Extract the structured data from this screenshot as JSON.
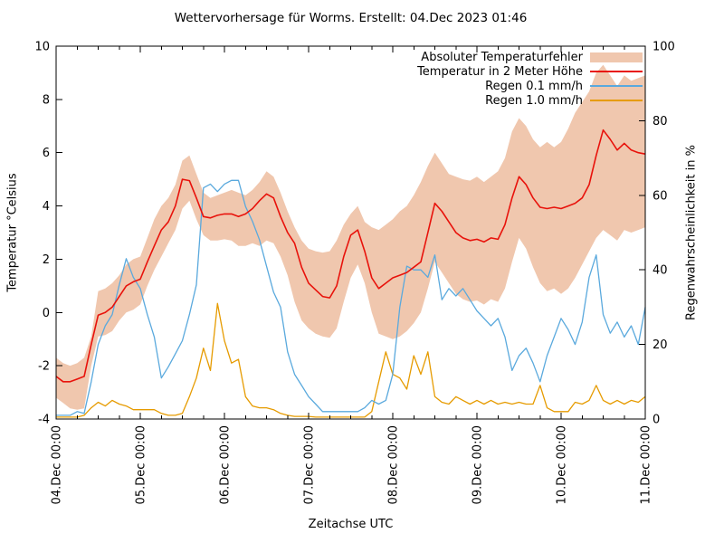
{
  "title": "Wettervorhersage für Worms. Erstellt: 04.Dec 2023 01:46",
  "axes": {
    "left_label": "Temperatur °Celsius",
    "right_label": "Regenwahrscheinlichkeit in %",
    "x_label": "Zeitachse UTC",
    "left_ticks": [
      10,
      8,
      6,
      4,
      2,
      0,
      -2,
      -4
    ],
    "right_ticks": [
      100,
      80,
      60,
      40,
      20,
      0
    ],
    "x_tick_labels": [
      "04.Dec 00:00",
      "05.Dec 00:00",
      "06.Dec 00:00",
      "07.Dec 00:00",
      "08.Dec 00:00",
      "09.Dec 00:00",
      "10.Dec 00:00",
      "11.Dec 00:00"
    ]
  },
  "legend": {
    "items": [
      {
        "label": "Absoluter Temperaturfehler",
        "sample": "band",
        "color_key": "band"
      },
      {
        "label": "Temperatur in 2 Meter Höhe",
        "sample": "line",
        "color_key": "temperature"
      },
      {
        "label": "Regen 0.1 mm/h",
        "sample": "line",
        "color_key": "rain01"
      },
      {
        "label": "Regen 1.0 mm/h",
        "sample": "line",
        "color_key": "rain10"
      }
    ]
  },
  "colors": {
    "band": "#f0c7ae",
    "temperature": "#e8120b",
    "rain01": "#5aa9dd",
    "rain10": "#e69b00",
    "axis": "#000000",
    "text": "#000000"
  },
  "chart_data": {
    "type": "line",
    "title": "Wettervorhersage für Worms. Erstellt: 04.Dec 2023 01:46",
    "x_unit": "hours since 04.Dec 2023 00:00 UTC",
    "x_range": [
      0,
      168
    ],
    "x_start_hour": 0,
    "x_step_hours": 2,
    "x_major_tick_hours": [
      0,
      24,
      48,
      72,
      96,
      120,
      144,
      168
    ],
    "x_minor_tick_step_hours": 6,
    "grid": false,
    "legend_position": "top-right-inside",
    "y_left": {
      "label": "Temperatur °Celsius",
      "range": [
        -4,
        10
      ]
    },
    "y_right": {
      "label": "Regenwahrscheinlichkeit in %",
      "range": [
        0,
        100
      ]
    },
    "series": [
      {
        "name": "Absoluter Temperaturfehler",
        "type": "band",
        "axis": "left",
        "upper": [
          -1.7,
          -1.9,
          -2.0,
          -1.9,
          -1.7,
          -0.9,
          0.8,
          0.9,
          1.1,
          1.4,
          1.8,
          2.0,
          2.1,
          2.8,
          3.5,
          4.0,
          4.3,
          4.8,
          5.7,
          5.9,
          5.2,
          4.5,
          4.3,
          4.4,
          4.5,
          4.6,
          4.5,
          4.4,
          4.6,
          4.9,
          5.3,
          5.1,
          4.5,
          3.8,
          3.2,
          2.7,
          2.4,
          2.3,
          2.25,
          2.3,
          2.7,
          3.3,
          3.7,
          4.0,
          3.4,
          3.2,
          3.1,
          3.3,
          3.5,
          3.8,
          4.0,
          4.4,
          4.9,
          5.5,
          6.0,
          5.6,
          5.2,
          5.1,
          5.0,
          4.95,
          5.1,
          4.9,
          5.1,
          5.3,
          5.8,
          6.8,
          7.3,
          7.0,
          6.5,
          6.2,
          6.4,
          6.2,
          6.4,
          6.9,
          7.5,
          7.9,
          8.3,
          9.0,
          9.3,
          8.9,
          8.5,
          8.9,
          8.7,
          8.8,
          8.9
        ],
        "lower": [
          -3.2,
          -3.4,
          -3.6,
          -3.65,
          -3.6,
          -2.0,
          -0.9,
          -0.85,
          -0.7,
          -0.3,
          0.0,
          0.1,
          0.3,
          1.0,
          1.6,
          2.1,
          2.6,
          3.1,
          3.9,
          4.2,
          3.5,
          2.9,
          2.7,
          2.7,
          2.75,
          2.7,
          2.5,
          2.5,
          2.6,
          2.5,
          2.7,
          2.6,
          2.1,
          1.4,
          0.4,
          -0.3,
          -0.6,
          -0.8,
          -0.9,
          -0.95,
          -0.6,
          0.4,
          1.3,
          1.8,
          1.1,
          0.0,
          -0.8,
          -0.9,
          -1.0,
          -0.9,
          -0.7,
          -0.4,
          0.0,
          0.9,
          1.9,
          1.5,
          1.1,
          0.7,
          0.5,
          0.4,
          0.45,
          0.3,
          0.5,
          0.4,
          0.9,
          1.9,
          2.8,
          2.4,
          1.7,
          1.1,
          0.8,
          0.9,
          0.7,
          0.9,
          1.3,
          1.8,
          2.3,
          2.8,
          3.1,
          2.9,
          2.7,
          3.1,
          3.0,
          3.1,
          3.2
        ]
      },
      {
        "name": "Temperatur in 2 Meter Höhe",
        "type": "line",
        "axis": "left",
        "values": [
          -2.4,
          -2.6,
          -2.6,
          -2.5,
          -2.4,
          -1.2,
          -0.1,
          0.0,
          0.2,
          0.6,
          1.0,
          1.15,
          1.25,
          1.9,
          2.5,
          3.1,
          3.4,
          4.0,
          5.0,
          4.95,
          4.3,
          3.6,
          3.55,
          3.65,
          3.7,
          3.7,
          3.6,
          3.7,
          3.9,
          4.2,
          4.45,
          4.3,
          3.6,
          3.0,
          2.6,
          1.7,
          1.1,
          0.85,
          0.6,
          0.55,
          1.0,
          2.1,
          2.9,
          3.1,
          2.3,
          1.3,
          0.9,
          1.1,
          1.3,
          1.4,
          1.5,
          1.7,
          1.9,
          3.0,
          4.1,
          3.8,
          3.4,
          3.0,
          2.8,
          2.7,
          2.75,
          2.65,
          2.8,
          2.75,
          3.3,
          4.3,
          5.1,
          4.8,
          4.3,
          3.95,
          3.9,
          3.95,
          3.9,
          4.0,
          4.1,
          4.3,
          4.8,
          5.9,
          6.85,
          6.5,
          6.1,
          6.35,
          6.1,
          6.0,
          5.95
        ]
      },
      {
        "name": "Regen 0.1 mm/h",
        "type": "line",
        "axis": "right",
        "values": [
          1,
          1,
          1,
          2,
          1.5,
          10,
          20,
          25,
          28,
          36,
          43,
          38,
          35,
          28,
          22,
          11,
          14,
          17.5,
          21,
          28,
          36,
          62,
          63,
          61,
          63,
          64,
          64,
          57,
          53,
          48,
          41,
          34,
          30,
          18,
          12,
          9,
          6,
          4,
          2,
          2,
          2,
          2,
          2,
          2,
          3,
          5,
          4,
          5,
          12,
          30,
          41,
          40,
          40,
          38,
          44,
          32,
          35,
          33,
          35,
          32,
          29,
          27,
          25,
          27,
          22,
          13,
          17,
          19,
          15,
          10,
          17,
          22,
          27,
          24,
          20,
          26,
          38,
          44,
          28,
          23,
          26,
          22,
          25,
          20,
          30
        ]
      },
      {
        "name": "Regen 1.0 mm/h",
        "type": "line",
        "axis": "right",
        "values": [
          0.5,
          0.5,
          0.5,
          0.5,
          1,
          3,
          4.5,
          3.5,
          5,
          4,
          3.5,
          2.5,
          2.5,
          2.5,
          2.5,
          1.5,
          1,
          1,
          1.5,
          6,
          11,
          19,
          13,
          31,
          21,
          15,
          16,
          6,
          3.5,
          3,
          3,
          2.5,
          1.5,
          1,
          0.7,
          0.7,
          0.7,
          0.5,
          0.5,
          0.5,
          0.5,
          0.5,
          0.5,
          0.5,
          0.5,
          2,
          10,
          18,
          12,
          11,
          8,
          17,
          12,
          18,
          6,
          4.5,
          4,
          6,
          5,
          4,
          5,
          4,
          5,
          4,
          4.5,
          4,
          4.5,
          4,
          4,
          9,
          3,
          2,
          2,
          2,
          4.5,
          4,
          5,
          9,
          5,
          4,
          5,
          4,
          5,
          4.5,
          6
        ]
      }
    ]
  }
}
